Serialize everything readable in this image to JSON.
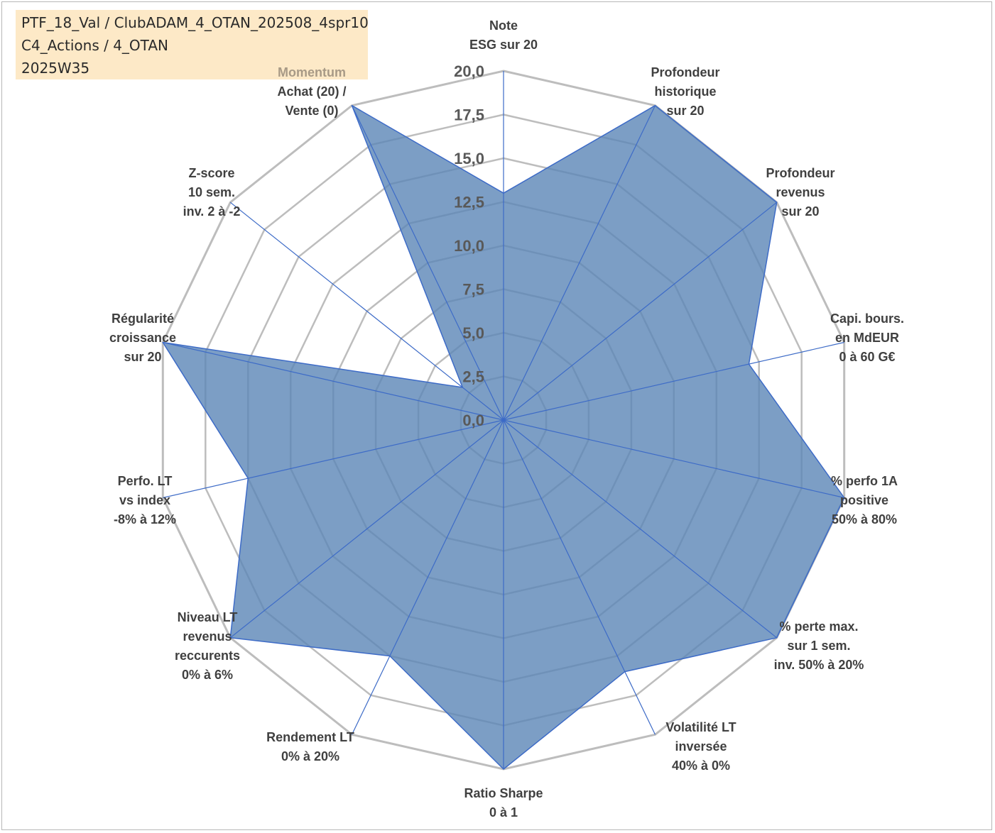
{
  "header": {
    "line1": "PTF_18_Val / ClubADAM_4_OTAN_202508_4spr10",
    "line2": "C4_Actions / 4_OTAN",
    "line3": "2025W35"
  },
  "colors": {
    "fill": "#5b86b6",
    "stroke": "#3d6bc7",
    "grid": "#bdbdbd",
    "label": "#404040",
    "momentum": "#a89a86",
    "info_bg": "#fde9c7"
  },
  "chart_data": {
    "type": "radar",
    "title": "",
    "rlim": [
      0,
      20
    ],
    "ticks": [
      "0,0",
      "2,5",
      "5,0",
      "7,5",
      "10,0",
      "12,5",
      "15,0",
      "17,5",
      "20,0"
    ],
    "grid": true,
    "axes": [
      {
        "lines": [
          "Note",
          "ESG sur 20"
        ],
        "value": 13.0
      },
      {
        "lines": [
          "Profondeur",
          "historique",
          "sur 20"
        ],
        "value": 20.0
      },
      {
        "lines": [
          "Profondeur",
          "revenus",
          "sur 20"
        ],
        "value": 20.0
      },
      {
        "lines": [
          "Capi. bours.",
          "en MdEUR",
          "0 à 60 G€"
        ],
        "value": 14.4
      },
      {
        "lines": [
          "% perfo 1A",
          "positive",
          "50% à 80%"
        ],
        "value": 20.0
      },
      {
        "lines": [
          "% perte max.",
          "sur 1 sem.",
          "inv. 50% à 20%"
        ],
        "value": 20.0
      },
      {
        "lines": [
          "Volatilité LT",
          "inversée",
          "40% à 0%"
        ],
        "value": 16.0
      },
      {
        "lines": [
          "Ratio Sharpe",
          "0 à 1"
        ],
        "value": 20.0
      },
      {
        "lines": [
          "Rendement LT",
          "0% à 20%"
        ],
        "value": 15.0
      },
      {
        "lines": [
          "Niveau LT",
          "revenus",
          "reccurents",
          "0% à 6%"
        ],
        "value": 20.0
      },
      {
        "lines": [
          "Perfo. LT",
          "vs index",
          "-8% à 12%"
        ],
        "value": 15.0
      },
      {
        "lines": [
          "Régularité",
          "croissance",
          "sur 20"
        ],
        "value": 20.0
      },
      {
        "lines": [
          "Z-score",
          "10 sem.",
          "inv. 2 à -2"
        ],
        "value": 3.0
      },
      {
        "lines": [
          "Momentum",
          "Achat (20) /",
          "Vente (0)"
        ],
        "value": 20.0
      }
    ]
  }
}
